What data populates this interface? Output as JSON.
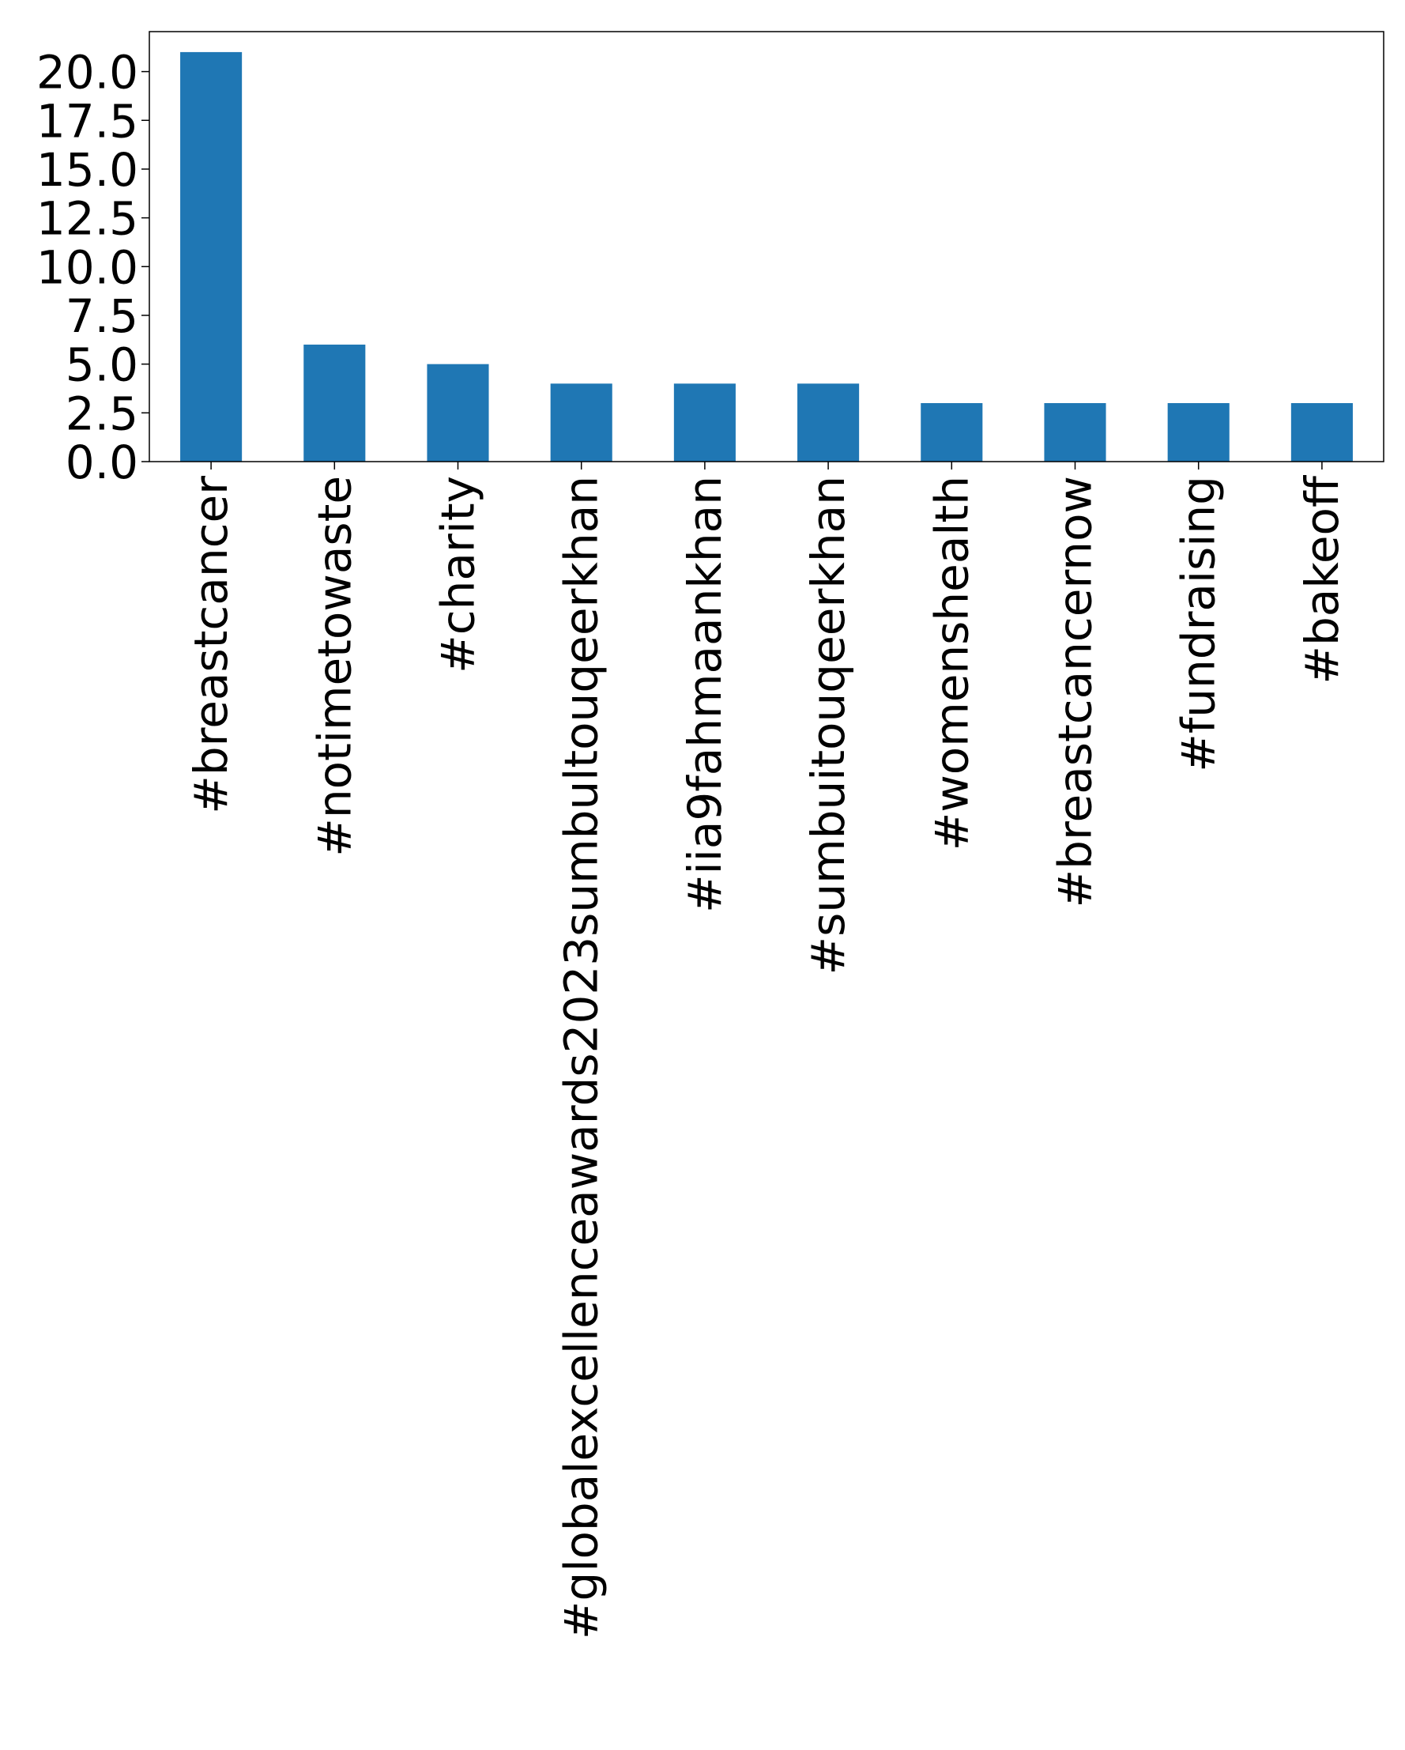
{
  "chart_data": {
    "type": "bar",
    "title": "",
    "xlabel": "",
    "ylabel": "",
    "categories": [
      "#breastcancer",
      "#notimetowaste",
      "#charity",
      "#globalexcellenceawards2023sumbultouqeerkhan",
      "#iia9fahmaankhan",
      "#sumbuitouqeerkhan",
      "#womenshealth",
      "#breastcancernow",
      "#fundraising",
      "#bakeoff"
    ],
    "values": [
      21,
      6,
      5,
      4,
      4,
      4,
      3,
      3,
      3,
      3
    ],
    "ylim": [
      0,
      22.05
    ],
    "yticks": [
      0.0,
      2.5,
      5.0,
      7.5,
      10.0,
      12.5,
      15.0,
      17.5,
      20.0
    ],
    "ytick_labels": [
      "0.0",
      "2.5",
      "5.0",
      "7.5",
      "10.0",
      "12.5",
      "15.0",
      "17.5",
      "20.0"
    ],
    "grid": false,
    "legend": "none",
    "bar_color": "#1f77b4"
  }
}
